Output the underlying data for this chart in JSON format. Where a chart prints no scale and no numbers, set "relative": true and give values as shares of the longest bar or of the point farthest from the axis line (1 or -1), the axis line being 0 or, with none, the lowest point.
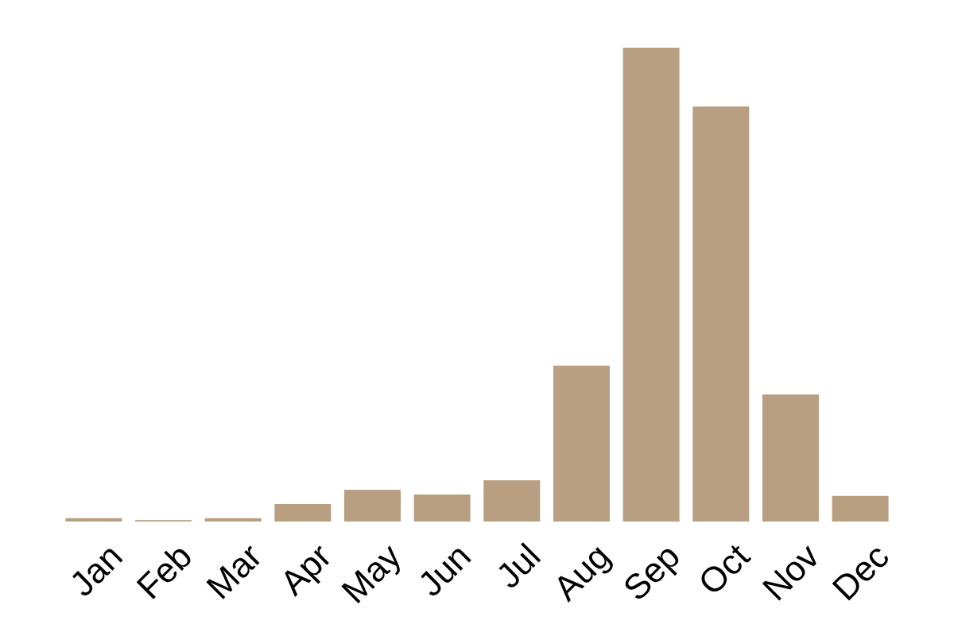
{
  "chart_data": {
    "type": "bar",
    "relative": true,
    "categories": [
      "Jan",
      "Feb",
      "Mar",
      "Apr",
      "May",
      "Jun",
      "Jul",
      "Aug",
      "Sep",
      "Oct",
      "Nov",
      "Dec"
    ],
    "values": [
      0.007,
      0.003,
      0.007,
      0.037,
      0.067,
      0.057,
      0.087,
      0.329,
      1,
      0.876,
      0.268,
      0.054
    ],
    "color": "#b89f82"
  }
}
